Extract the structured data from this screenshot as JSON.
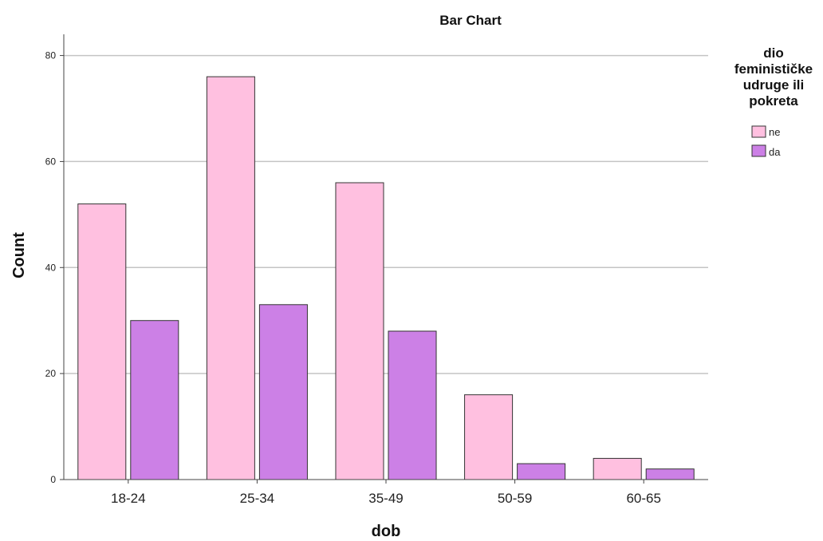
{
  "chart_data": {
    "type": "bar",
    "title": "Bar Chart",
    "xlabel": "dob",
    "ylabel": "Count",
    "categories": [
      "18-24",
      "25-34",
      "35-49",
      "50-59",
      "60-65"
    ],
    "series": [
      {
        "name": "ne",
        "values": [
          52,
          76,
          56,
          16,
          4
        ],
        "color": "#ffc0e0"
      },
      {
        "name": "da",
        "values": [
          30,
          33,
          28,
          3,
          2
        ],
        "color": "#cc80e6"
      }
    ],
    "ylim": [
      0,
      84
    ],
    "yticks": [
      0,
      20,
      40,
      60,
      80
    ],
    "grid": true,
    "legend": {
      "title_lines": [
        "dio",
        "feminističke",
        "udruge ili",
        "pokreta"
      ],
      "placement": "top-right"
    }
  }
}
